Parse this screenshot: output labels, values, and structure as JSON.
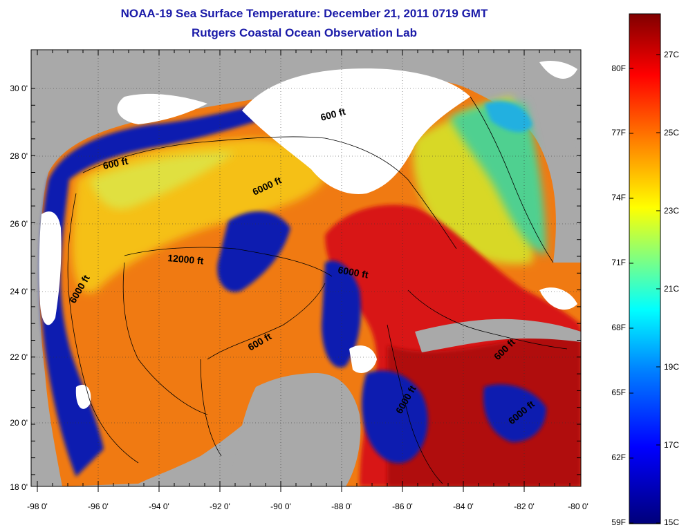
{
  "title": {
    "line1": "NOAA-19 Sea Surface Temperature:  December 21, 2011 0719 GMT",
    "line2": "Rutgers Coastal Ocean Observation Lab"
  },
  "map": {
    "lon_labels": [
      "-98 0'",
      "-96 0'",
      "-94 0'",
      "-92 0'",
      "-90 0'",
      "-88 0'",
      "-86 0'",
      "-84 0'",
      "-82 0'",
      "-80 0'"
    ],
    "lat_labels": [
      "30 0'",
      "28 0'",
      "26 0'",
      "24 0'",
      "22 0'",
      "20 0'",
      "18 0'"
    ],
    "contour_labels": [
      "600 ft",
      "6000 ft",
      "600 ft",
      "12000 ft",
      "6000 ft",
      "600 ft",
      "6000 ft",
      "600 ft",
      "6000 ft",
      "6000 ft"
    ],
    "colors": {
      "land": "#a9a9a9",
      "cloud": "#ffffff",
      "gulf_warm": "#f07010",
      "loop_current": "#d81010",
      "shelf_cold": "#0a1cb0"
    }
  },
  "colorbar": {
    "f_labels": [
      "80F",
      "77F",
      "74F",
      "71F",
      "68F",
      "65F",
      "62F",
      "59F"
    ],
    "c_labels": [
      "27C",
      "25C",
      "23C",
      "21C",
      "19C",
      "17C",
      "15C"
    ],
    "colors": [
      "#00007a",
      "#0000ff",
      "#0080ff",
      "#00ffff",
      "#80ff80",
      "#ffff00",
      "#ff8000",
      "#ff0000",
      "#800000"
    ]
  }
}
